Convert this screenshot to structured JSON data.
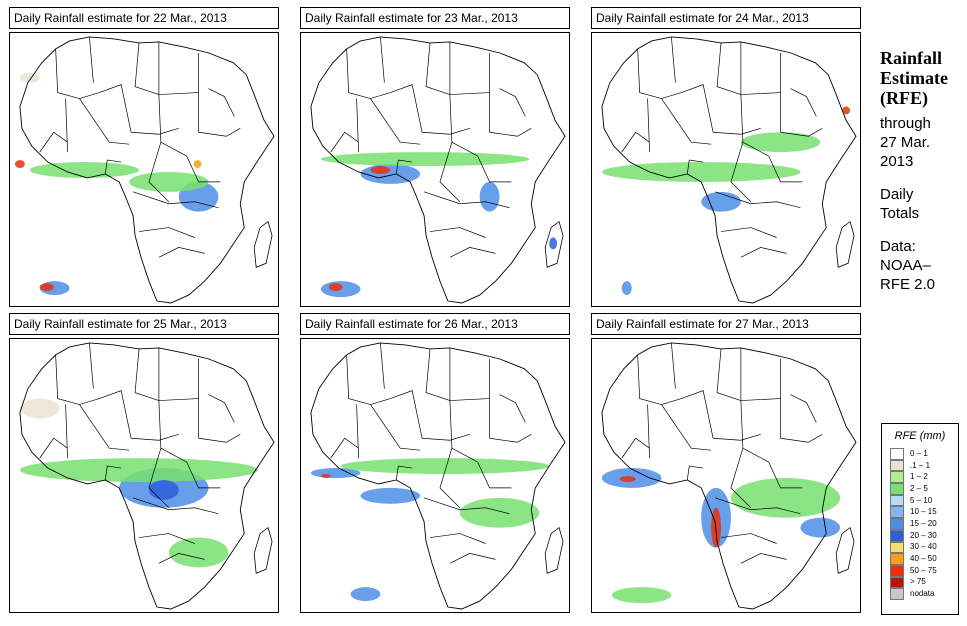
{
  "panels": [
    {
      "title": "Daily Rainfall estimate for  22 Mar., 2013"
    },
    {
      "title": "Daily Rainfall estimate for  23 Mar., 2013"
    },
    {
      "title": "Daily Rainfall estimate for  24 Mar., 2013"
    },
    {
      "title": "Daily Rainfall estimate for  25 Mar., 2013"
    },
    {
      "title": "Daily Rainfall estimate for  26 Mar., 2013"
    },
    {
      "title": "Daily Rainfall estimate for  27 Mar., 2013"
    }
  ],
  "side": {
    "title_lines": [
      "Rainfall",
      "Estimate",
      "(RFE)"
    ],
    "through": "through",
    "date_line1": "27 Mar.",
    "date_line2": "2013",
    "totals_line1": "Daily",
    "totals_line2": "Totals",
    "data_line1": "Data:",
    "data_line2": "NOAA–",
    "data_line3": "RFE 2.0"
  },
  "legend": {
    "title": "RFE (mm)",
    "items": [
      {
        "label": "0 – 1",
        "color": "#ffffff"
      },
      {
        "label": ".1 – 1",
        "color": "#eae2d2"
      },
      {
        "label": "1 – 2",
        "color": "#b4ed90"
      },
      {
        "label": "2 – 5",
        "color": "#78e070"
      },
      {
        "label": "5 – 10",
        "color": "#b8dcf4"
      },
      {
        "label": "10 – 15",
        "color": "#7fb8ee"
      },
      {
        "label": "15 – 20",
        "color": "#4e8ee8"
      },
      {
        "label": "20 – 30",
        "color": "#2f5ed8"
      },
      {
        "label": "30 – 40",
        "color": "#f6e06a"
      },
      {
        "label": "40 – 50",
        "color": "#f5a018"
      },
      {
        "label": "50 – 75",
        "color": "#e83010"
      },
      {
        "label": "> 75",
        "color": "#c01008"
      },
      {
        "label": "nodata",
        "color": "#c8c8c8"
      }
    ]
  }
}
